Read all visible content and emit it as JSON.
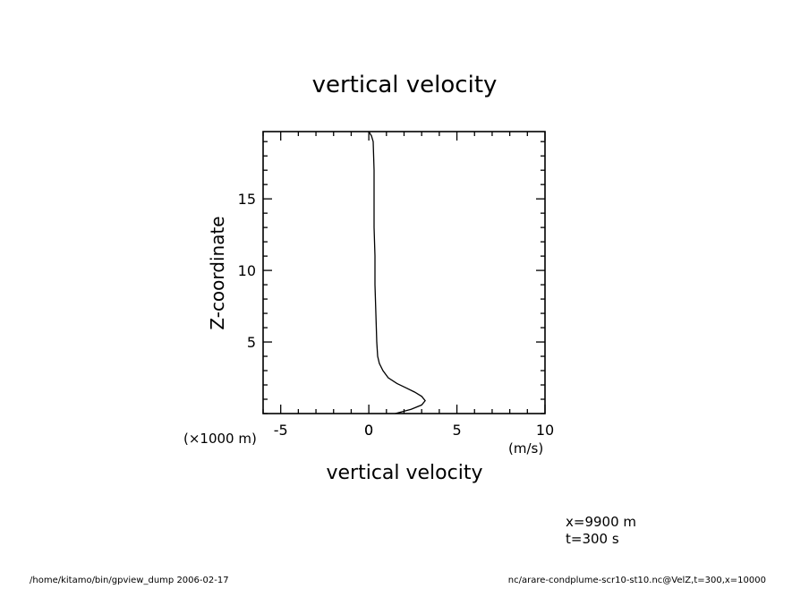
{
  "figure": {
    "title": "vertical velocity",
    "xlabel": "vertical velocity",
    "xunits": "(m/s)",
    "ylabel": "Z-coordinate",
    "yunits": "(×1000 m)",
    "info_lines": [
      "x=9900 m",
      "t=300 s"
    ],
    "footer_left": "/home/kitamo/bin/gpview_dump  2006-02-17",
    "footer_right": "nc/arare-condplume-scr10-st10.nc@VelZ,t=300,x=10000"
  },
  "chart_data": {
    "type": "line",
    "title": "vertical velocity",
    "xlabel": "vertical velocity",
    "ylabel": "Z-coordinate",
    "xlim": [
      -6,
      10
    ],
    "ylim": [
      0,
      19.7
    ],
    "x_major_ticks": [
      -5,
      0,
      5,
      10
    ],
    "y_major_ticks": [
      5,
      10,
      15
    ],
    "x_minor_step": 1,
    "y_minor_step": 1,
    "grid": false,
    "series": [
      {
        "x": [
          1.5,
          2.4,
          3.0,
          3.2,
          3.0,
          2.6,
          2.1,
          1.6,
          1.1,
          0.8,
          0.6,
          0.5,
          0.45,
          0.4,
          0.35,
          0.35,
          0.3,
          0.3,
          0.3,
          0.25,
          0.15,
          0.0
        ],
        "y": [
          0.0,
          0.3,
          0.6,
          0.9,
          1.2,
          1.5,
          1.8,
          2.1,
          2.5,
          3.0,
          3.5,
          4.0,
          5.0,
          7.0,
          9.0,
          11.0,
          13.0,
          15.0,
          17.0,
          19.0,
          19.4,
          19.7
        ]
      }
    ]
  }
}
